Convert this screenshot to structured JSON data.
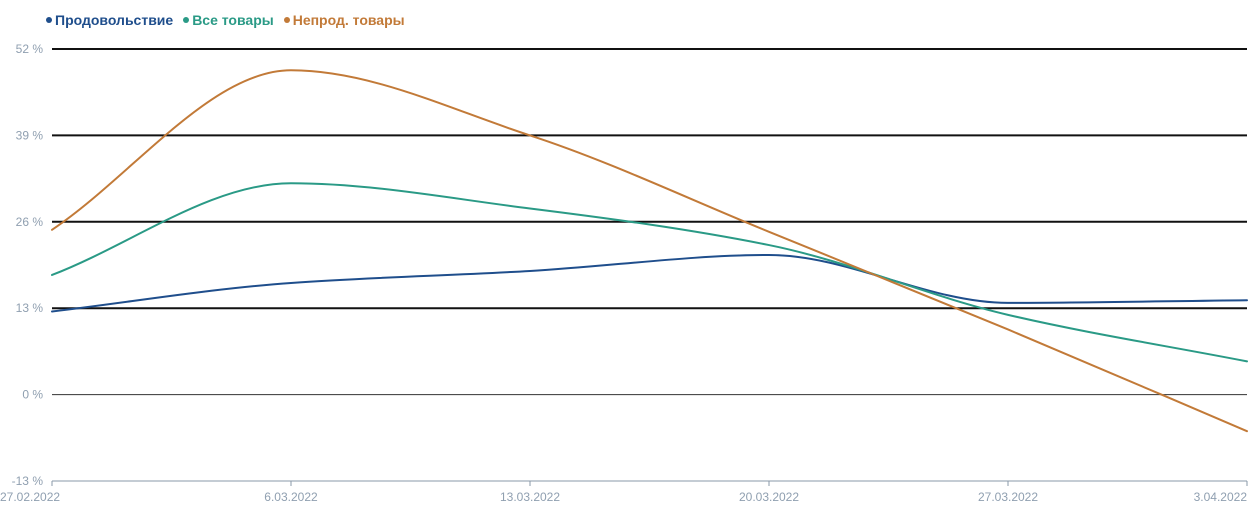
{
  "chart_data": {
    "type": "line",
    "title": "",
    "xlabel": "",
    "ylabel": "",
    "x": [
      "27.02.2022",
      "6.03.2022",
      "13.03.2022",
      "20.03.2022",
      "27.03.2022",
      "3.04.2022"
    ],
    "yticks": [
      "52 %",
      "39 %",
      "26 %",
      "13 %",
      "0 %",
      "-13 %"
    ],
    "ylim": [
      -13,
      52
    ],
    "grid": true,
    "legend_position": "top-left",
    "series": [
      {
        "name": "Продовольствие",
        "color": "#1f4e8c",
        "values": [
          12.5,
          16.8,
          18.6,
          21.0,
          13.8,
          14.2
        ]
      },
      {
        "name": "Все товары",
        "color": "#2a9a86",
        "values": [
          18.0,
          31.8,
          28.0,
          22.5,
          12.0,
          5.0
        ]
      },
      {
        "name": "Непрод. товары",
        "color": "#c27a38",
        "values": [
          24.8,
          48.8,
          39.0,
          24.5,
          9.8,
          -5.5
        ]
      }
    ]
  }
}
